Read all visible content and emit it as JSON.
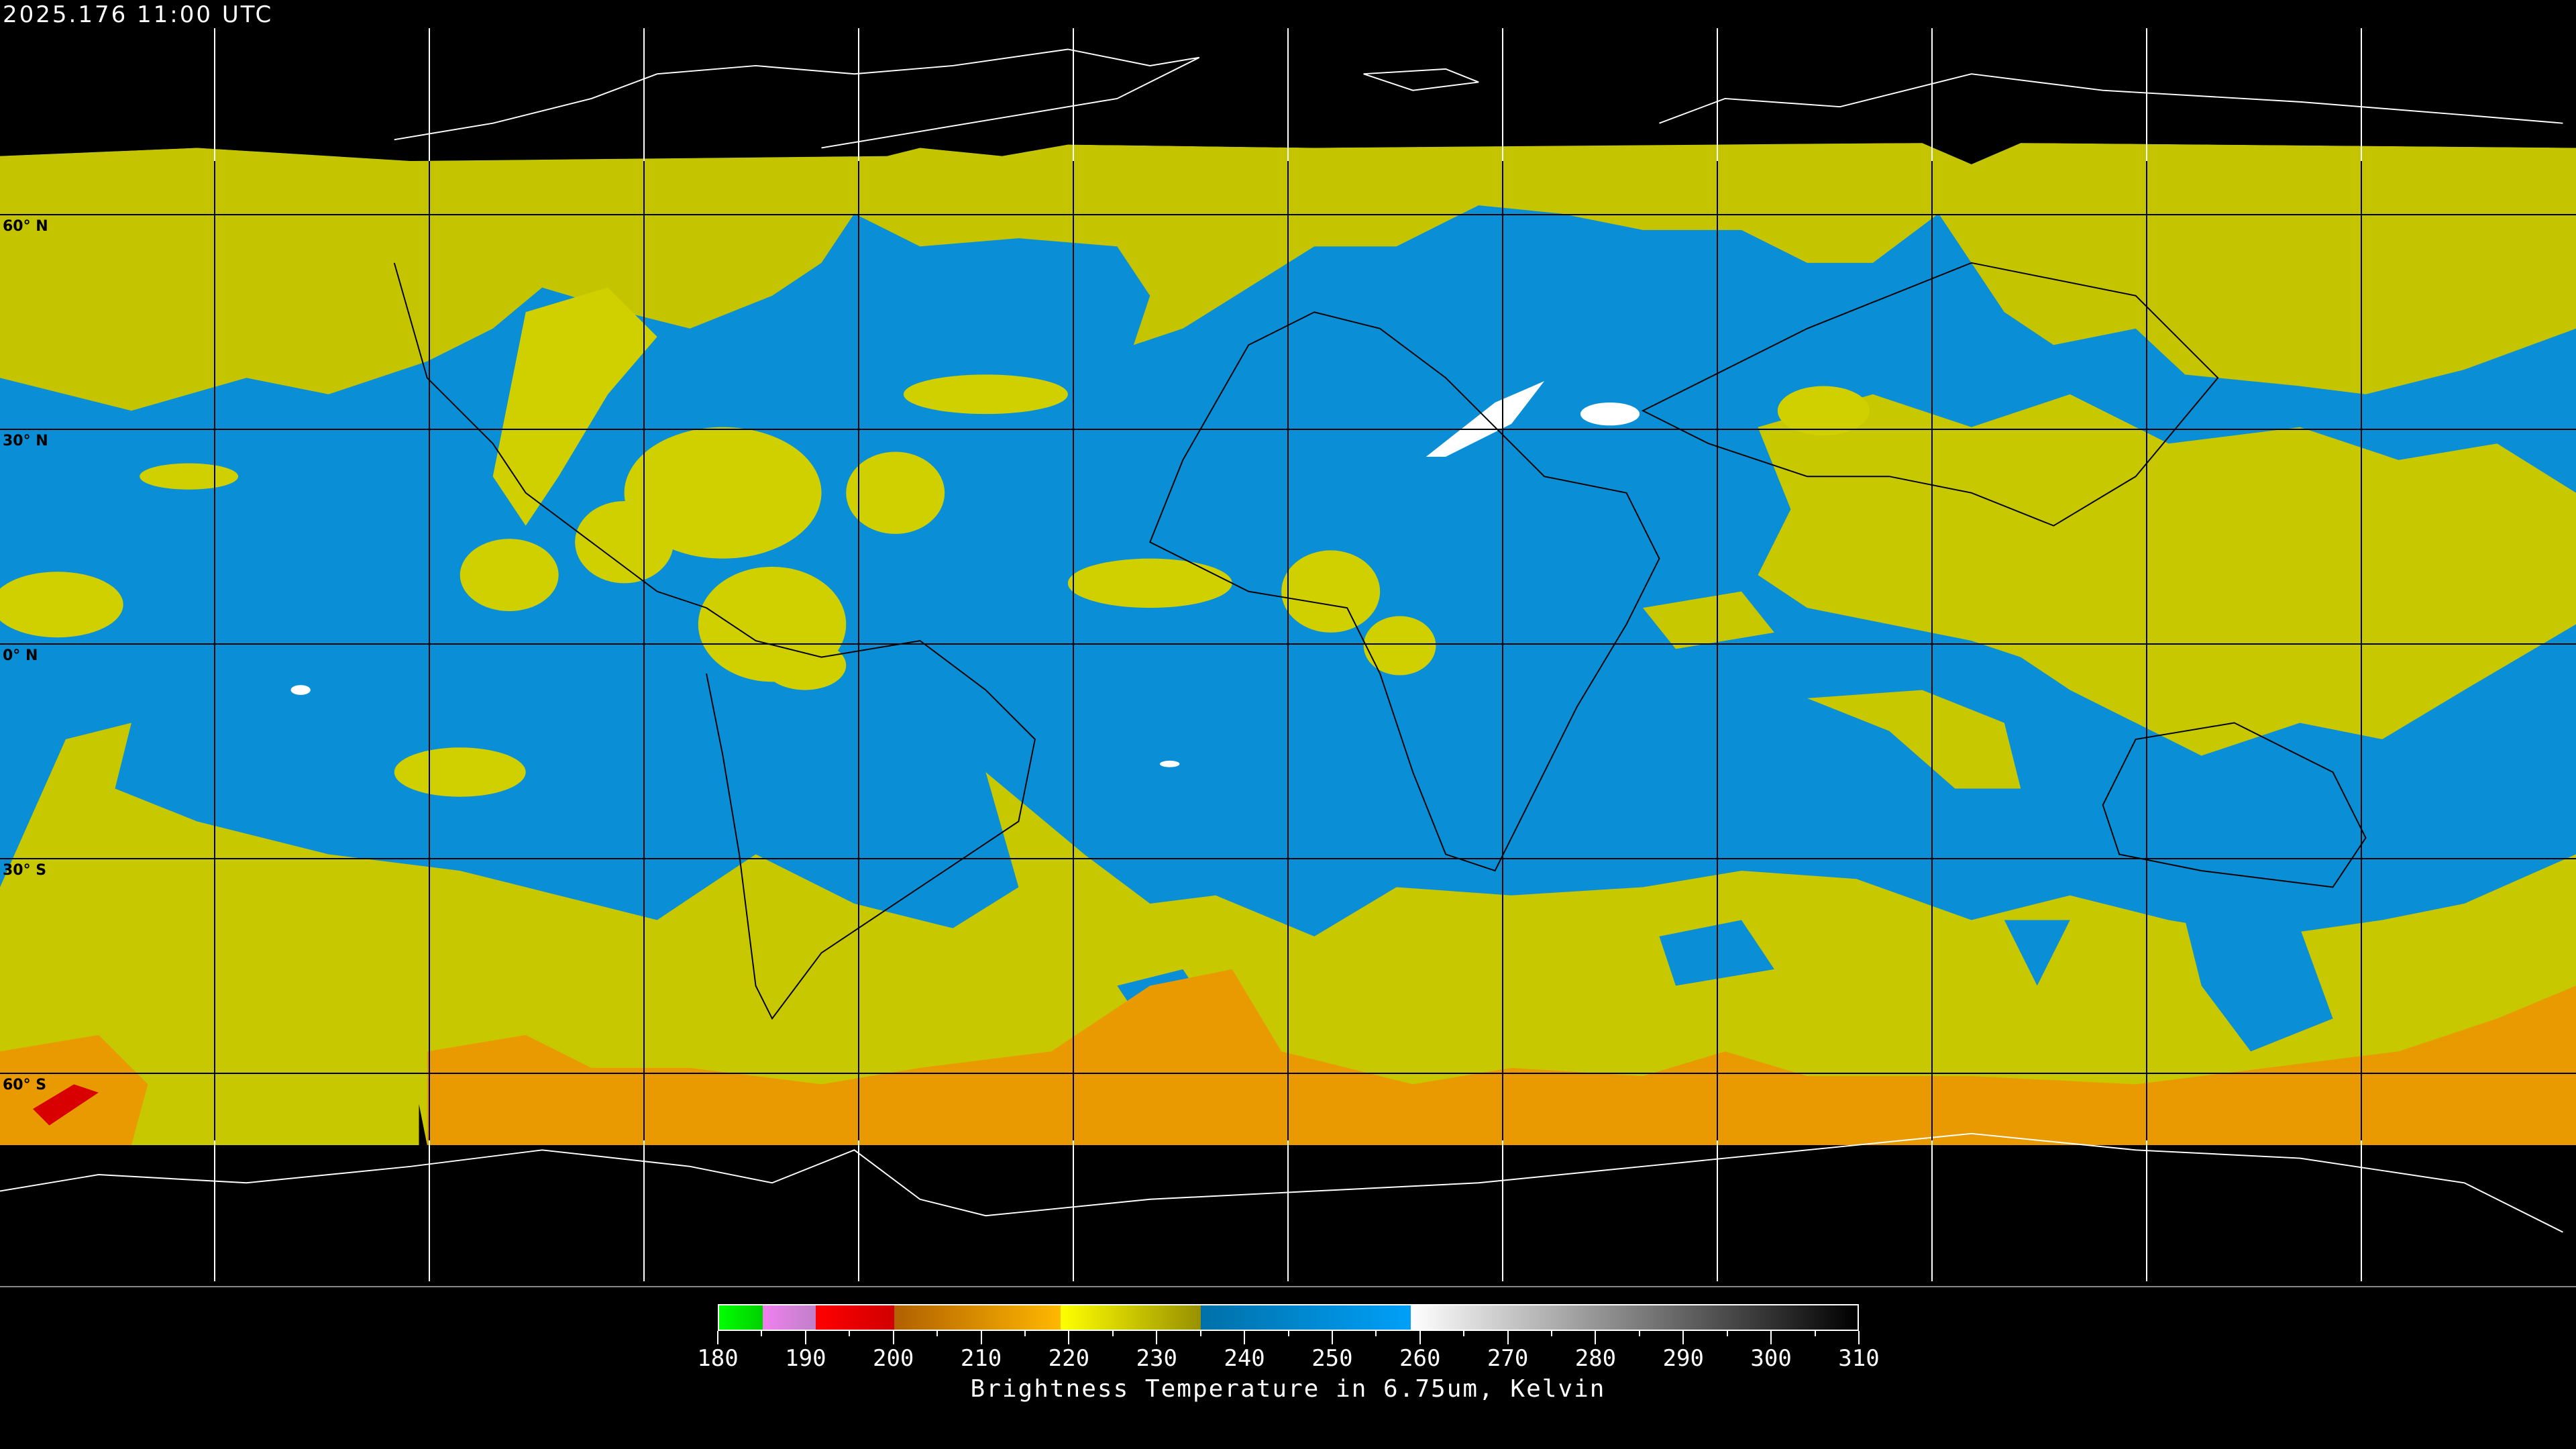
{
  "header": {
    "timestamp": "2025.176 11:00 UTC"
  },
  "map": {
    "lat_labels": [
      "60° N",
      "30° N",
      "0° N",
      "30° S",
      "60° S"
    ],
    "colors": {
      "background": "#000000",
      "clear_sky": "#0a8fd6",
      "cloud_high": "#c8c800",
      "cloud_bright": "#e6e600",
      "cold_orange": "#e89a00",
      "very_cold_red": "#d80000",
      "warm_white": "#ffffff",
      "grid": "#000000",
      "coastline": "#000000",
      "coastline_polar": "#ffffff"
    }
  },
  "colorbar": {
    "title": "Brightness Temperature in 6.75um, Kelvin",
    "range": [
      180,
      310
    ],
    "tick_step": 5,
    "labels": [
      "180",
      "190",
      "200",
      "210",
      "220",
      "230",
      "240",
      "250",
      "260",
      "270",
      "280",
      "290",
      "300",
      "310"
    ],
    "segments": [
      {
        "from": 180,
        "to": 185,
        "colors": [
          "#00ff00",
          "#00d000"
        ]
      },
      {
        "from": 185,
        "to": 191,
        "colors": [
          "#f080f0",
          "#c080c8"
        ]
      },
      {
        "from": 191,
        "to": 200,
        "colors": [
          "#ff0000",
          "#d00000"
        ]
      },
      {
        "from": 200,
        "to": 219,
        "colors": [
          "#b06000",
          "#ffb800"
        ]
      },
      {
        "from": 219,
        "to": 235,
        "colors": [
          "#ffff00",
          "#989000"
        ]
      },
      {
        "from": 235,
        "to": 259,
        "colors": [
          "#0070a8",
          "#00a0f8"
        ]
      },
      {
        "from": 259,
        "to": 310,
        "colors": [
          "#ffffff",
          "#000000"
        ]
      }
    ]
  }
}
